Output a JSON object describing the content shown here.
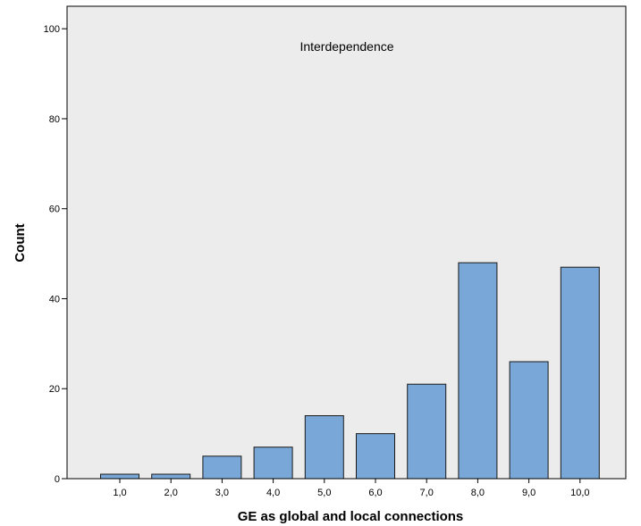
{
  "chart_data": {
    "type": "bar",
    "annotation": "Interdependence",
    "xlabel": "GE as global and local connections",
    "ylabel": "Count",
    "categories": [
      "1,0",
      "2,0",
      "3,0",
      "4,0",
      "5,0",
      "6,0",
      "7,0",
      "8,0",
      "9,0",
      "10,0"
    ],
    "values": [
      1,
      1,
      5,
      7,
      14,
      10,
      21,
      48,
      26,
      47
    ],
    "ylim": [
      0,
      105
    ],
    "yticks": [
      0,
      20,
      40,
      60,
      80,
      100
    ],
    "ytick_labels": [
      "0",
      "20",
      "40",
      "60",
      "80",
      "100"
    ],
    "grid": false,
    "colors": {
      "plot_background": "#ececec",
      "bar_fill": "#78a7d8",
      "bar_stroke": "#1a1a1a",
      "axis": "#000000"
    }
  }
}
